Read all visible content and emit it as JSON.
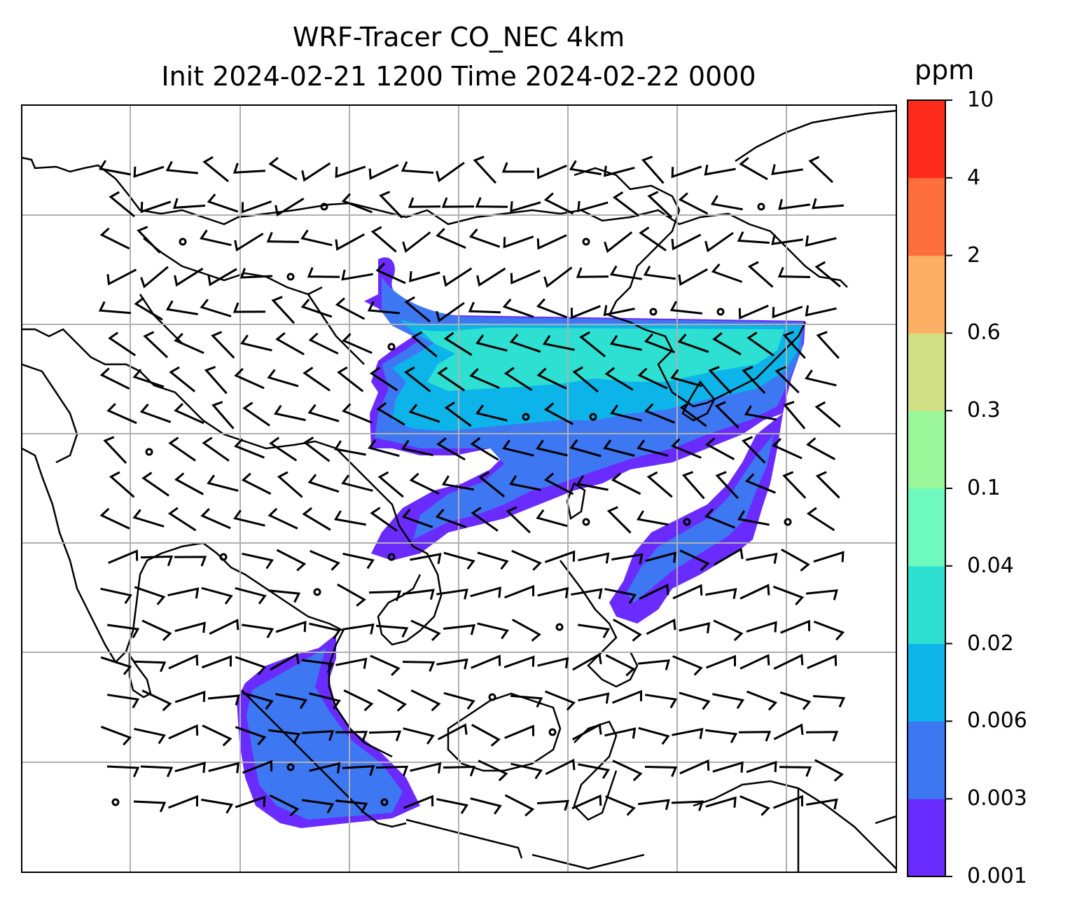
{
  "title": {
    "line1": "WRF-Tracer CO_NEC 4km",
    "line2": "Init 2024-02-21 1200 Time 2024-02-22 0000"
  },
  "colorbar": {
    "unit": "ppm",
    "levels": [
      "0.001",
      "0.003",
      "0.006",
      "0.02",
      "0.04",
      "0.1",
      "0.3",
      "0.6",
      "2",
      "4",
      "10"
    ],
    "colors": [
      "#6a2bff",
      "#3d77f2",
      "#0cb4ea",
      "#2de0d2",
      "#6ef9be",
      "#99f79a",
      "#d1e084",
      "#fdb063",
      "#ff6f3e",
      "#ff2b1a"
    ]
  },
  "map": {
    "gridlines": true,
    "coastline_color": "#000000",
    "wind_barbs": true,
    "plume_color_low": "#6a2bff",
    "plume_color_mid": "#3d77f2",
    "plume_color_high": "#0cb4ea",
    "plume_color_peak": "#2de0d2"
  }
}
